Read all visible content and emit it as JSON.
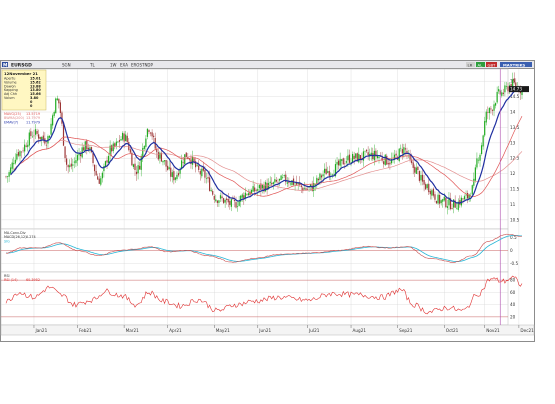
{
  "toolbar": {
    "symbol_badge": "M",
    "symbol": "EURSGD",
    "chips": [
      "SGN",
      "TL",
      "1W",
      "EXA",
      "EROSTNDP"
    ],
    "right_badges": [
      "LR",
      "AL",
      "GBT"
    ],
    "right_label": "MAXTRIKS"
  },
  "info_box": {
    "title": "12November 21",
    "rows": [
      {
        "label": "Apertu",
        "value": "15.01"
      },
      {
        "label": "Volume",
        "value": "15.62"
      },
      {
        "label": "Dawon",
        "value": "13.88"
      },
      {
        "label": "Kapping",
        "value": "13.80"
      },
      {
        "label": "Adj Chh",
        "value": "15.66"
      },
      {
        "label": "Volum",
        "value": "3.80"
      },
      {
        "label": "",
        "value": "0"
      },
      {
        "label": "",
        "value": "0"
      }
    ]
  },
  "price_legend": [
    {
      "label": "MAVG(25)",
      "value": "13.5719",
      "color": "#e05555"
    },
    {
      "label": "BWMA(200)",
      "value": "13.7979",
      "color": "#e08a8a"
    },
    {
      "label": "EMAV(7)",
      "value": "11.7979",
      "color": "#2233aa"
    }
  ],
  "macd_legend": [
    {
      "label": "MA-Conv-Div",
      "value": "",
      "color": "#333333"
    },
    {
      "label": "MACD(26,12)",
      "value": "0.274",
      "color": "#333333"
    },
    {
      "label": "SIG",
      "value": "",
      "color": "#27b6d6"
    }
  ],
  "rsi_legend": [
    {
      "label": "RSI",
      "value": "",
      "color": "#333333"
    },
    {
      "label": "RSI (14)",
      "value": "60.3952",
      "color": "#e03030"
    }
  ],
  "last_price_label": "14.73",
  "colors": {
    "up": "#1faa1f",
    "down": "#9c3535",
    "ema": "#1f2fa0",
    "ma_fast": "#e05555",
    "ma_slow": "#e39090",
    "macd_line": "#c94a4a",
    "signal_line": "#27b6d6",
    "rsi_line": "#e03030",
    "grid": "#d8d8d8",
    "marker": "#b050b0"
  },
  "chart_data": {
    "type": "candlestick",
    "price_axis": {
      "ticks": [
        "15",
        "14.5",
        "14",
        "13.5",
        "13",
        "12.5",
        "12",
        "11.5",
        "11",
        "10.5"
      ],
      "ylim": [
        10.3,
        15.3
      ]
    },
    "macd_axis": {
      "ticks": [
        "0.5",
        "0",
        "-0.5"
      ],
      "ylim": [
        -0.75,
        0.75
      ]
    },
    "rsi_axis": {
      "ticks": [
        "80",
        "60",
        "40",
        "20"
      ],
      "ylim": [
        10,
        90
      ]
    },
    "x_labels": [
      "Jan21",
      "Feb21",
      "Mar21",
      "Apr21",
      "May21",
      "Jun21",
      "Jul21",
      "Aug21",
      "Sep21",
      "Oct21",
      "Nov21",
      "Dec21"
    ],
    "price_anchors": [
      [
        0,
        11.9
      ],
      [
        8,
        12.7
      ],
      [
        18,
        13.3
      ],
      [
        26,
        13.1
      ],
      [
        33,
        14.4
      ],
      [
        40,
        12.2
      ],
      [
        52,
        12.9
      ],
      [
        60,
        11.8
      ],
      [
        68,
        12.8
      ],
      [
        76,
        13.2
      ],
      [
        84,
        12.1
      ],
      [
        92,
        13.5
      ],
      [
        98,
        12.6
      ],
      [
        108,
        11.9
      ],
      [
        116,
        12.6
      ],
      [
        126,
        12.0
      ],
      [
        136,
        11.2
      ],
      [
        146,
        11.0
      ],
      [
        156,
        11.4
      ],
      [
        168,
        11.6
      ],
      [
        180,
        11.8
      ],
      [
        194,
        11.5
      ],
      [
        208,
        12.1
      ],
      [
        222,
        12.5
      ],
      [
        236,
        12.6
      ],
      [
        248,
        12.4
      ],
      [
        256,
        12.8
      ],
      [
        262,
        12.2
      ],
      [
        270,
        11.6
      ],
      [
        280,
        11.1
      ],
      [
        288,
        11.0
      ],
      [
        296,
        11.2
      ],
      [
        300,
        11.5
      ],
      [
        304,
        12.6
      ],
      [
        310,
        14.0
      ],
      [
        318,
        14.6
      ],
      [
        326,
        14.9
      ],
      [
        332,
        14.73
      ]
    ],
    "macd_anchors": [
      [
        0,
        -0.1
      ],
      [
        10,
        0.1
      ],
      [
        22,
        0.1
      ],
      [
        34,
        0.3
      ],
      [
        46,
        0.0
      ],
      [
        60,
        -0.2
      ],
      [
        72,
        0.0
      ],
      [
        84,
        0.05
      ],
      [
        92,
        0.15
      ],
      [
        104,
        -0.05
      ],
      [
        116,
        0.0
      ],
      [
        130,
        -0.2
      ],
      [
        146,
        -0.45
      ],
      [
        160,
        -0.3
      ],
      [
        176,
        -0.15
      ],
      [
        196,
        -0.1
      ],
      [
        214,
        0.0
      ],
      [
        232,
        0.15
      ],
      [
        246,
        0.1
      ],
      [
        258,
        0.15
      ],
      [
        272,
        -0.3
      ],
      [
        288,
        -0.45
      ],
      [
        300,
        -0.2
      ],
      [
        310,
        0.35
      ],
      [
        322,
        0.62
      ],
      [
        332,
        0.55
      ]
    ],
    "rsi_anchors": [
      [
        0,
        45
      ],
      [
        8,
        60
      ],
      [
        18,
        52
      ],
      [
        28,
        68
      ],
      [
        36,
        55
      ],
      [
        44,
        40
      ],
      [
        56,
        48
      ],
      [
        64,
        62
      ],
      [
        74,
        55
      ],
      [
        84,
        40
      ],
      [
        92,
        60
      ],
      [
        102,
        45
      ],
      [
        112,
        38
      ],
      [
        124,
        48
      ],
      [
        136,
        30
      ],
      [
        148,
        40
      ],
      [
        160,
        46
      ],
      [
        176,
        52
      ],
      [
        194,
        47
      ],
      [
        210,
        58
      ],
      [
        226,
        56
      ],
      [
        242,
        52
      ],
      [
        254,
        64
      ],
      [
        262,
        40
      ],
      [
        272,
        28
      ],
      [
        284,
        35
      ],
      [
        294,
        30
      ],
      [
        304,
        58
      ],
      [
        312,
        82
      ],
      [
        320,
        78
      ],
      [
        326,
        84
      ],
      [
        332,
        72
      ]
    ]
  }
}
